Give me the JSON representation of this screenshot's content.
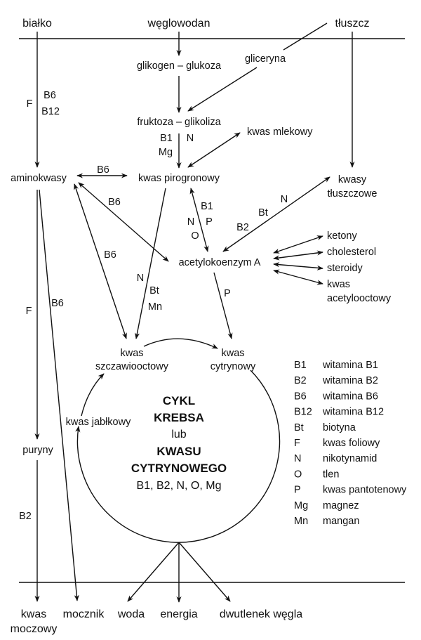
{
  "inputs": {
    "protein": "białko",
    "carbohydrate": "węglowodan",
    "fat": "tłuszcz"
  },
  "nodes": {
    "glycogen": "glikogen – glukoza",
    "glycerol": "gliceryna",
    "fructose": "fruktoza – glikoliza",
    "lactic": "kwas mlekowy",
    "amino": "aminokwasy",
    "pyruvic": "kwas pirogronowy",
    "fatty1": "kwasy",
    "fatty2": "tłuszczowe",
    "acetyl": "acetylokoenzym A",
    "ketones": "ketony",
    "cholesterol": "cholesterol",
    "steroids": "steroidy",
    "acetoacetic1": "kwas",
    "acetoacetic2": "acetylooctowy",
    "oxalo1": "kwas",
    "oxalo2": "szczawiooctowy",
    "citric1": "kwas",
    "citric2": "cytrynowy",
    "malic": "kwas jabłkowy",
    "purines": "puryny"
  },
  "cycle": {
    "line1": "CYKL",
    "line2": "KREBSA",
    "line3": "lub",
    "line4": "KWASU",
    "line5": "CYTRYNOWEGO",
    "cofactors": "B1, B2, N, O, Mg"
  },
  "cofactor_labels": {
    "protein_F": "F",
    "protein_B6": "B6",
    "protein_B12": "B12",
    "glyc_B1": "B1",
    "glyc_N": "N",
    "glyc_Mg": "Mg",
    "amino_pyr_B6": "B6",
    "amino_acetyl_B6": "B6",
    "amino_oxalo_B6": "B6",
    "pyr_acetyl_B1": "B1",
    "pyr_acetyl_P": "P",
    "pyr_acetyl_N": "N",
    "pyr_acetyl_O": "O",
    "fatty_B2": "B2",
    "fatty_Bt": "Bt",
    "fatty_N": "N",
    "pyr_oxalo_N": "N",
    "pyr_oxalo_Bt": "Bt",
    "pyr_oxalo_Mn": "Mn",
    "acetyl_citric_P": "P",
    "amino_purine_F": "F",
    "amino_urea_B6": "B6",
    "purine_uric_B2": "B2"
  },
  "outputs": {
    "uric1": "kwas",
    "uric2": "moczowy",
    "urea": "mocznik",
    "water": "woda",
    "energy": "energia",
    "co2": "dwutlenek węgla"
  },
  "legend": [
    {
      "abbr": "B1",
      "meaning": "witamina B1"
    },
    {
      "abbr": "B2",
      "meaning": "witamina B2"
    },
    {
      "abbr": "B6",
      "meaning": "witamina B6"
    },
    {
      "abbr": "B12",
      "meaning": "witamina B12"
    },
    {
      "abbr": "Bt",
      "meaning": "biotyna"
    },
    {
      "abbr": "F",
      "meaning": "kwas foliowy"
    },
    {
      "abbr": "N",
      "meaning": "nikotynamid"
    },
    {
      "abbr": "O",
      "meaning": "tlen"
    },
    {
      "abbr": "P",
      "meaning": "kwas pantotenowy"
    },
    {
      "abbr": "Mg",
      "meaning": "magnez"
    },
    {
      "abbr": "Mn",
      "meaning": "mangan"
    }
  ]
}
